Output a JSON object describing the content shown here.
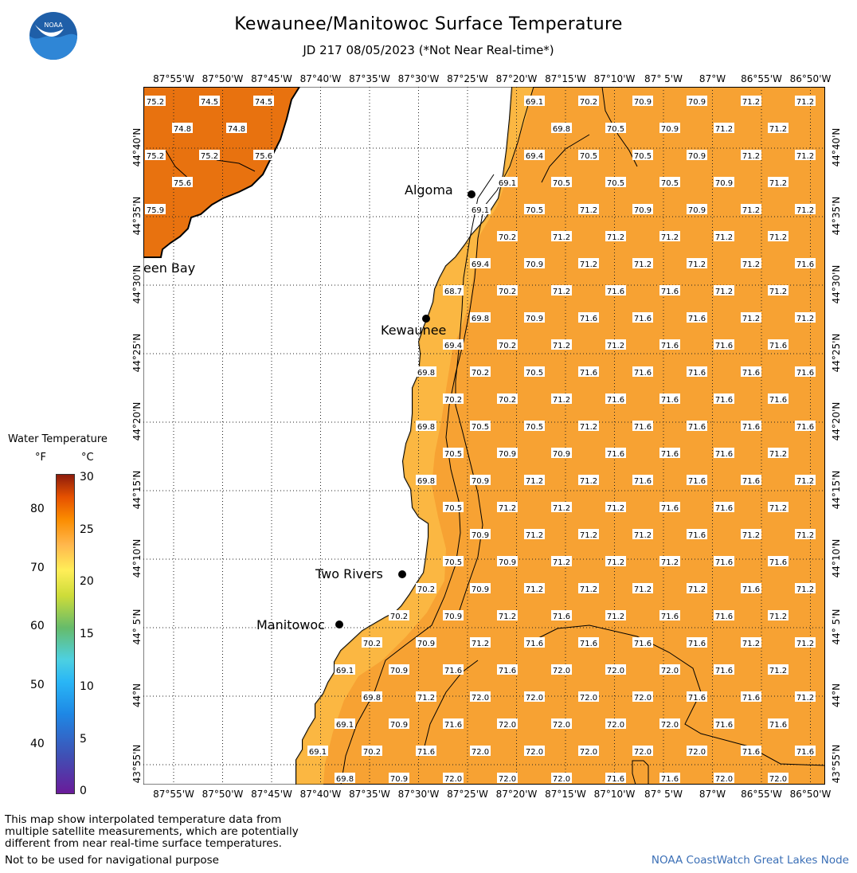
{
  "title": "Kewaunee/Manitowoc Surface Temperature",
  "subtitle": "JD 217 08/05/2023 (*Not Near Real-time*)",
  "logo_text": "NOAA",
  "lon_labels": [
    "87°55'W",
    "87°50'W",
    "87°45'W",
    "87°40'W",
    "87°35'W",
    "87°30'W",
    "87°25'W",
    "87°20'W",
    "87°15'W",
    "87°10'W",
    "87° 5'W",
    "87°W",
    "86°55'W",
    "86°50'W"
  ],
  "lat_labels": [
    "44°40'N",
    "44°35'N",
    "44°30'N",
    "44°25'N",
    "44°20'N",
    "44°15'N",
    "44°10'N",
    "44° 5'N",
    "44°N",
    "43°55'N"
  ],
  "cities": {
    "algoma": "Algoma",
    "kewaunee": "Kewaunee",
    "two_rivers": "Two Rivers",
    "manitowoc": "Manitowoc",
    "green_bay": "een Bay"
  },
  "legend": {
    "title": "Water Temperature",
    "unit_f": "°F",
    "unit_c": "°C",
    "f_ticks": [
      "80",
      "70",
      "60",
      "50",
      "40"
    ],
    "c_ticks": [
      "30",
      "25",
      "20",
      "15",
      "10",
      "5",
      "0"
    ]
  },
  "footnote": [
    "This map show interpolated temperature data from",
    "multiple satellite measurements, which are potentially",
    "different from near real-time surface temperatures."
  ],
  "disclaimer": "Not to be used for navigational purpose",
  "credit": "NOAA CoastWatch Great Lakes Node",
  "colors": {
    "lake": "#f7a233",
    "lake_warm": "#f59a26",
    "nearshore": "#fbbf4a",
    "bay": "#e8700f",
    "land": "#ffffff"
  },
  "bay_values": [
    {
      "v": "75.2",
      "c": 0,
      "r": 0
    },
    {
      "v": "74.5",
      "c": 2,
      "r": 0
    },
    {
      "v": "74.5",
      "c": 4,
      "r": 0
    },
    {
      "v": "74.8",
      "c": 1,
      "r": 1
    },
    {
      "v": "74.8",
      "c": 3,
      "r": 1
    },
    {
      "v": "75.2",
      "c": 0,
      "r": 2
    },
    {
      "v": "75.2",
      "c": 2,
      "r": 2
    },
    {
      "v": "75.6",
      "c": 4,
      "r": 2
    },
    {
      "v": "75.6",
      "c": 1,
      "r": 3
    },
    {
      "v": "75.9",
      "c": 0,
      "r": 4
    }
  ],
  "lake_values": [
    {
      "v": "69.1",
      "c": 14,
      "r": 0
    },
    {
      "v": "70.2",
      "c": 16,
      "r": 0
    },
    {
      "v": "70.9",
      "c": 18,
      "r": 0
    },
    {
      "v": "70.9",
      "c": 20,
      "r": 0
    },
    {
      "v": "71.2",
      "c": 22,
      "r": 0
    },
    {
      "v": "71.2",
      "c": 24,
      "r": 0
    },
    {
      "v": "69.8",
      "c": 15,
      "r": 1
    },
    {
      "v": "70.5",
      "c": 17,
      "r": 1
    },
    {
      "v": "70.9",
      "c": 19,
      "r": 1
    },
    {
      "v": "71.2",
      "c": 21,
      "r": 1
    },
    {
      "v": "71.2",
      "c": 23,
      "r": 1
    },
    {
      "v": "69.4",
      "c": 14,
      "r": 2
    },
    {
      "v": "70.5",
      "c": 16,
      "r": 2
    },
    {
      "v": "70.5",
      "c": 18,
      "r": 2
    },
    {
      "v": "70.9",
      "c": 20,
      "r": 2
    },
    {
      "v": "71.2",
      "c": 22,
      "r": 2
    },
    {
      "v": "71.2",
      "c": 24,
      "r": 2
    },
    {
      "v": "69.1",
      "c": 13,
      "r": 3
    },
    {
      "v": "70.5",
      "c": 15,
      "r": 3
    },
    {
      "v": "70.5",
      "c": 17,
      "r": 3
    },
    {
      "v": "70.5",
      "c": 19,
      "r": 3
    },
    {
      "v": "70.9",
      "c": 21,
      "r": 3
    },
    {
      "v": "71.2",
      "c": 23,
      "r": 3
    },
    {
      "v": "69.1",
      "c": 12,
      "r": 4
    },
    {
      "v": "70.5",
      "c": 14,
      "r": 4
    },
    {
      "v": "71.2",
      "c": 16,
      "r": 4
    },
    {
      "v": "70.9",
      "c": 18,
      "r": 4
    },
    {
      "v": "70.9",
      "c": 20,
      "r": 4
    },
    {
      "v": "71.2",
      "c": 22,
      "r": 4
    },
    {
      "v": "71.2",
      "c": 24,
      "r": 4
    },
    {
      "v": "70.2",
      "c": 13,
      "r": 5
    },
    {
      "v": "71.2",
      "c": 15,
      "r": 5
    },
    {
      "v": "71.2",
      "c": 17,
      "r": 5
    },
    {
      "v": "71.2",
      "c": 19,
      "r": 5
    },
    {
      "v": "71.2",
      "c": 21,
      "r": 5
    },
    {
      "v": "71.2",
      "c": 23,
      "r": 5
    },
    {
      "v": "69.4",
      "c": 12,
      "r": 6
    },
    {
      "v": "70.9",
      "c": 14,
      "r": 6
    },
    {
      "v": "71.2",
      "c": 16,
      "r": 6
    },
    {
      "v": "71.2",
      "c": 18,
      "r": 6
    },
    {
      "v": "71.2",
      "c": 20,
      "r": 6
    },
    {
      "v": "71.2",
      "c": 22,
      "r": 6
    },
    {
      "v": "71.6",
      "c": 24,
      "r": 6
    },
    {
      "v": "68.7",
      "c": 11,
      "r": 7
    },
    {
      "v": "70.2",
      "c": 13,
      "r": 7
    },
    {
      "v": "71.2",
      "c": 15,
      "r": 7
    },
    {
      "v": "71.6",
      "c": 17,
      "r": 7
    },
    {
      "v": "71.6",
      "c": 19,
      "r": 7
    },
    {
      "v": "71.2",
      "c": 21,
      "r": 7
    },
    {
      "v": "71.2",
      "c": 23,
      "r": 7
    },
    {
      "v": "69.8",
      "c": 12,
      "r": 8
    },
    {
      "v": "70.9",
      "c": 14,
      "r": 8
    },
    {
      "v": "71.6",
      "c": 16,
      "r": 8
    },
    {
      "v": "71.6",
      "c": 18,
      "r": 8
    },
    {
      "v": "71.6",
      "c": 20,
      "r": 8
    },
    {
      "v": "71.2",
      "c": 22,
      "r": 8
    },
    {
      "v": "71.2",
      "c": 24,
      "r": 8
    },
    {
      "v": "69.4",
      "c": 11,
      "r": 9
    },
    {
      "v": "70.2",
      "c": 13,
      "r": 9
    },
    {
      "v": "71.2",
      "c": 15,
      "r": 9
    },
    {
      "v": "71.2",
      "c": 17,
      "r": 9
    },
    {
      "v": "71.6",
      "c": 19,
      "r": 9
    },
    {
      "v": "71.6",
      "c": 21,
      "r": 9
    },
    {
      "v": "71.6",
      "c": 23,
      "r": 9
    },
    {
      "v": "69.8",
      "c": 10,
      "r": 10
    },
    {
      "v": "70.2",
      "c": 12,
      "r": 10
    },
    {
      "v": "70.5",
      "c": 14,
      "r": 10
    },
    {
      "v": "71.6",
      "c": 16,
      "r": 10
    },
    {
      "v": "71.6",
      "c": 18,
      "r": 10
    },
    {
      "v": "71.6",
      "c": 20,
      "r": 10
    },
    {
      "v": "71.6",
      "c": 22,
      "r": 10
    },
    {
      "v": "71.6",
      "c": 24,
      "r": 10
    },
    {
      "v": "70.2",
      "c": 11,
      "r": 11
    },
    {
      "v": "70.2",
      "c": 13,
      "r": 11
    },
    {
      "v": "71.2",
      "c": 15,
      "r": 11
    },
    {
      "v": "71.6",
      "c": 17,
      "r": 11
    },
    {
      "v": "71.6",
      "c": 19,
      "r": 11
    },
    {
      "v": "71.6",
      "c": 21,
      "r": 11
    },
    {
      "v": "71.6",
      "c": 23,
      "r": 11
    },
    {
      "v": "69.8",
      "c": 10,
      "r": 12
    },
    {
      "v": "70.5",
      "c": 12,
      "r": 12
    },
    {
      "v": "70.5",
      "c": 14,
      "r": 12
    },
    {
      "v": "71.2",
      "c": 16,
      "r": 12
    },
    {
      "v": "71.6",
      "c": 18,
      "r": 12
    },
    {
      "v": "71.6",
      "c": 20,
      "r": 12
    },
    {
      "v": "71.6",
      "c": 22,
      "r": 12
    },
    {
      "v": "71.6",
      "c": 24,
      "r": 12
    },
    {
      "v": "70.5",
      "c": 11,
      "r": 13
    },
    {
      "v": "70.9",
      "c": 13,
      "r": 13
    },
    {
      "v": "70.9",
      "c": 15,
      "r": 13
    },
    {
      "v": "71.6",
      "c": 17,
      "r": 13
    },
    {
      "v": "71.6",
      "c": 19,
      "r": 13
    },
    {
      "v": "71.6",
      "c": 21,
      "r": 13
    },
    {
      "v": "71.2",
      "c": 23,
      "r": 13
    },
    {
      "v": "69.8",
      "c": 10,
      "r": 14
    },
    {
      "v": "70.9",
      "c": 12,
      "r": 14
    },
    {
      "v": "71.2",
      "c": 14,
      "r": 14
    },
    {
      "v": "71.2",
      "c": 16,
      "r": 14
    },
    {
      "v": "71.6",
      "c": 18,
      "r": 14
    },
    {
      "v": "71.6",
      "c": 20,
      "r": 14
    },
    {
      "v": "71.6",
      "c": 22,
      "r": 14
    },
    {
      "v": "71.2",
      "c": 24,
      "r": 14
    },
    {
      "v": "70.5",
      "c": 11,
      "r": 15
    },
    {
      "v": "71.2",
      "c": 13,
      "r": 15
    },
    {
      "v": "71.2",
      "c": 15,
      "r": 15
    },
    {
      "v": "71.2",
      "c": 17,
      "r": 15
    },
    {
      "v": "71.6",
      "c": 19,
      "r": 15
    },
    {
      "v": "71.6",
      "c": 21,
      "r": 15
    },
    {
      "v": "71.2",
      "c": 23,
      "r": 15
    },
    {
      "v": "70.9",
      "c": 12,
      "r": 16
    },
    {
      "v": "71.2",
      "c": 14,
      "r": 16
    },
    {
      "v": "71.2",
      "c": 16,
      "r": 16
    },
    {
      "v": "71.2",
      "c": 18,
      "r": 16
    },
    {
      "v": "71.6",
      "c": 20,
      "r": 16
    },
    {
      "v": "71.2",
      "c": 22,
      "r": 16
    },
    {
      "v": "71.2",
      "c": 24,
      "r": 16
    },
    {
      "v": "70.5",
      "c": 11,
      "r": 17
    },
    {
      "v": "70.9",
      "c": 13,
      "r": 17
    },
    {
      "v": "71.2",
      "c": 15,
      "r": 17
    },
    {
      "v": "71.2",
      "c": 17,
      "r": 17
    },
    {
      "v": "71.2",
      "c": 19,
      "r": 17
    },
    {
      "v": "71.6",
      "c": 21,
      "r": 17
    },
    {
      "v": "71.6",
      "c": 23,
      "r": 17
    },
    {
      "v": "70.2",
      "c": 10,
      "r": 18
    },
    {
      "v": "70.9",
      "c": 12,
      "r": 18
    },
    {
      "v": "71.2",
      "c": 14,
      "r": 18
    },
    {
      "v": "71.2",
      "c": 16,
      "r": 18
    },
    {
      "v": "71.2",
      "c": 18,
      "r": 18
    },
    {
      "v": "71.2",
      "c": 20,
      "r": 18
    },
    {
      "v": "71.6",
      "c": 22,
      "r": 18
    },
    {
      "v": "71.2",
      "c": 24,
      "r": 18
    },
    {
      "v": "70.2",
      "c": 9,
      "r": 19
    },
    {
      "v": "70.9",
      "c": 11,
      "r": 19
    },
    {
      "v": "71.2",
      "c": 13,
      "r": 19
    },
    {
      "v": "71.6",
      "c": 15,
      "r": 19
    },
    {
      "v": "71.2",
      "c": 17,
      "r": 19
    },
    {
      "v": "71.6",
      "c": 19,
      "r": 19
    },
    {
      "v": "71.6",
      "c": 21,
      "r": 19
    },
    {
      "v": "71.2",
      "c": 23,
      "r": 19
    },
    {
      "v": "70.2",
      "c": 8,
      "r": 20
    },
    {
      "v": "70.9",
      "c": 10,
      "r": 20
    },
    {
      "v": "71.2",
      "c": 12,
      "r": 20
    },
    {
      "v": "71.6",
      "c": 14,
      "r": 20
    },
    {
      "v": "71.6",
      "c": 16,
      "r": 20
    },
    {
      "v": "71.6",
      "c": 18,
      "r": 20
    },
    {
      "v": "71.6",
      "c": 20,
      "r": 20
    },
    {
      "v": "71.2",
      "c": 22,
      "r": 20
    },
    {
      "v": "71.2",
      "c": 24,
      "r": 20
    },
    {
      "v": "69.1",
      "c": 7,
      "r": 21
    },
    {
      "v": "70.9",
      "c": 9,
      "r": 21
    },
    {
      "v": "71.6",
      "c": 11,
      "r": 21
    },
    {
      "v": "71.6",
      "c": 13,
      "r": 21
    },
    {
      "v": "72.0",
      "c": 15,
      "r": 21
    },
    {
      "v": "72.0",
      "c": 17,
      "r": 21
    },
    {
      "v": "72.0",
      "c": 19,
      "r": 21
    },
    {
      "v": "71.6",
      "c": 21,
      "r": 21
    },
    {
      "v": "71.2",
      "c": 23,
      "r": 21
    },
    {
      "v": "69.8",
      "c": 8,
      "r": 22
    },
    {
      "v": "71.2",
      "c": 10,
      "r": 22
    },
    {
      "v": "72.0",
      "c": 12,
      "r": 22
    },
    {
      "v": "72.0",
      "c": 14,
      "r": 22
    },
    {
      "v": "72.0",
      "c": 16,
      "r": 22
    },
    {
      "v": "72.0",
      "c": 18,
      "r": 22
    },
    {
      "v": "71.6",
      "c": 20,
      "r": 22
    },
    {
      "v": "71.6",
      "c": 22,
      "r": 22
    },
    {
      "v": "71.2",
      "c": 24,
      "r": 22
    },
    {
      "v": "69.1",
      "c": 7,
      "r": 23
    },
    {
      "v": "70.9",
      "c": 9,
      "r": 23
    },
    {
      "v": "71.6",
      "c": 11,
      "r": 23
    },
    {
      "v": "72.0",
      "c": 13,
      "r": 23
    },
    {
      "v": "72.0",
      "c": 15,
      "r": 23
    },
    {
      "v": "72.0",
      "c": 17,
      "r": 23
    },
    {
      "v": "72.0",
      "c": 19,
      "r": 23
    },
    {
      "v": "71.6",
      "c": 21,
      "r": 23
    },
    {
      "v": "71.6",
      "c": 23,
      "r": 23
    },
    {
      "v": "69.1",
      "c": 6,
      "r": 24
    },
    {
      "v": "70.2",
      "c": 8,
      "r": 24
    },
    {
      "v": "71.6",
      "c": 10,
      "r": 24
    },
    {
      "v": "72.0",
      "c": 12,
      "r": 24
    },
    {
      "v": "72.0",
      "c": 14,
      "r": 24
    },
    {
      "v": "72.0",
      "c": 16,
      "r": 24
    },
    {
      "v": "72.0",
      "c": 18,
      "r": 24
    },
    {
      "v": "72.0",
      "c": 20,
      "r": 24
    },
    {
      "v": "71.6",
      "c": 22,
      "r": 24
    },
    {
      "v": "71.6",
      "c": 24,
      "r": 24
    },
    {
      "v": "69.8",
      "c": 7,
      "r": 25
    },
    {
      "v": "70.9",
      "c": 9,
      "r": 25
    },
    {
      "v": "72.0",
      "c": 11,
      "r": 25
    },
    {
      "v": "72.0",
      "c": 13,
      "r": 25
    },
    {
      "v": "72.0",
      "c": 15,
      "r": 25
    },
    {
      "v": "71.6",
      "c": 17,
      "r": 25
    },
    {
      "v": "71.6",
      "c": 19,
      "r": 25
    },
    {
      "v": "72.0",
      "c": 21,
      "r": 25
    },
    {
      "v": "72.0",
      "c": 23,
      "r": 25
    }
  ]
}
